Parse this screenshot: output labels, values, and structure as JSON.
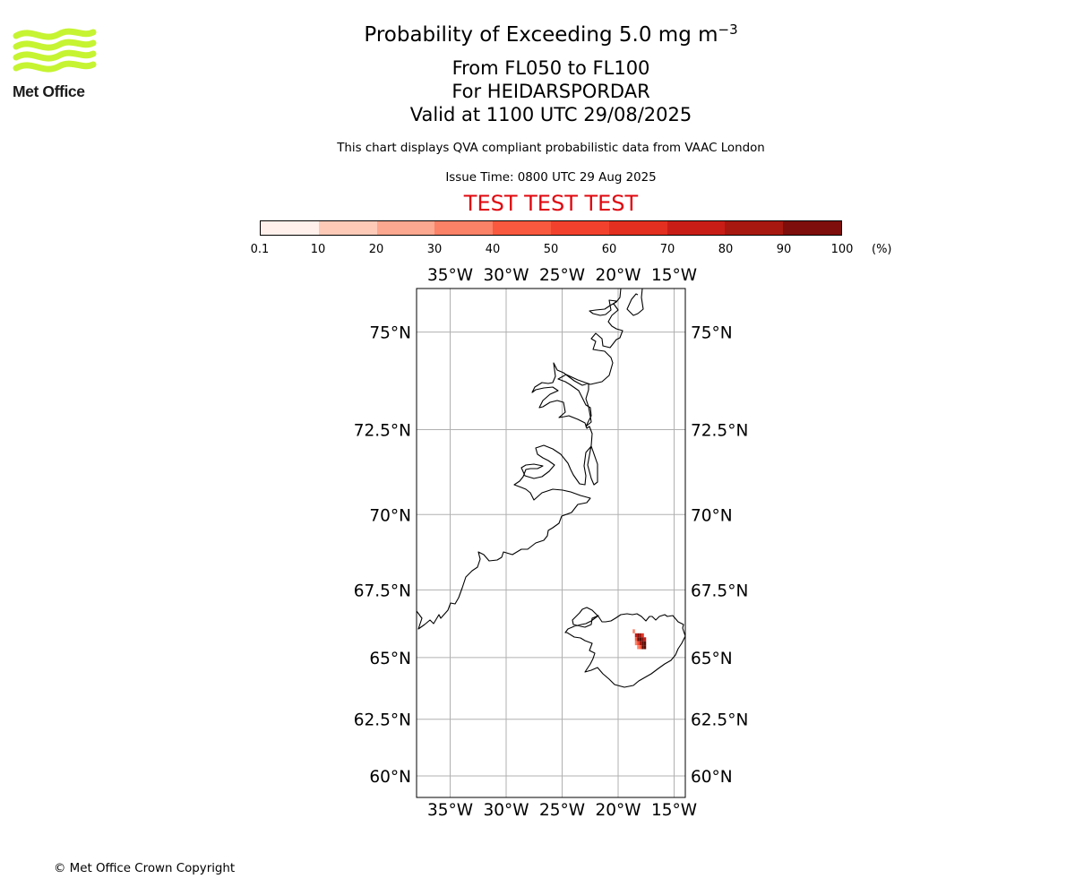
{
  "logo": {
    "text": "Met Office",
    "color": "#c6f432"
  },
  "header": {
    "title_prefix": "Probability of Exceeding 5.0 mg m",
    "title_exponent": "−3",
    "level_range": "From FL050 to FL100",
    "volcano": "For HEIDARSPORDAR",
    "valid_time": "Valid at 1100 UTC 29/08/2025",
    "description": "This chart displays QVA compliant probabilistic data from VAAC London",
    "issue_time": "Issue Time: 0800 UTC 29 Aug 2025",
    "test_banner": "TEST TEST TEST",
    "test_color": "#e0070e"
  },
  "colorbar": {
    "ticks": [
      "0.1",
      "10",
      "20",
      "30",
      "40",
      "50",
      "60",
      "70",
      "80",
      "90",
      "100"
    ],
    "unit": "(%)",
    "colors": [
      "#fff0eb",
      "#fdcab8",
      "#fca78f",
      "#fb8167",
      "#f9593e",
      "#f2422e",
      "#e22f1f",
      "#c81d17",
      "#a71810",
      "#7e0e0b",
      "#5e0c05"
    ]
  },
  "map": {
    "lon_range": [
      -38,
      -14
    ],
    "lat_range": [
      59,
      76
    ],
    "lon_ticks": [
      {
        "v": -35,
        "label": "35°W"
      },
      {
        "v": -30,
        "label": "30°W"
      },
      {
        "v": -25,
        "label": "25°W"
      },
      {
        "v": -20,
        "label": "20°W"
      },
      {
        "v": -15,
        "label": "15°W"
      }
    ],
    "lat_ticks": [
      {
        "v": 60,
        "label": "60°N"
      },
      {
        "v": 62.5,
        "label": "62.5°N"
      },
      {
        "v": 65,
        "label": "65°N"
      },
      {
        "v": 67.5,
        "label": "67.5°N"
      },
      {
        "v": 70,
        "label": "70°N"
      },
      {
        "v": 72.5,
        "label": "72.5°N"
      },
      {
        "v": 75,
        "label": "75°N"
      }
    ],
    "ash_cells": [
      {
        "lon": -18.6,
        "lat": 66.0,
        "p": 20
      },
      {
        "lon": -18.4,
        "lat": 65.85,
        "p": 60
      },
      {
        "lon": -18.2,
        "lat": 65.85,
        "p": 80
      },
      {
        "lon": -18.0,
        "lat": 65.85,
        "p": 70
      },
      {
        "lon": -17.8,
        "lat": 65.85,
        "p": 50
      },
      {
        "lon": -18.4,
        "lat": 65.7,
        "p": 30
      },
      {
        "lon": -18.2,
        "lat": 65.7,
        "p": 90
      },
      {
        "lon": -18.0,
        "lat": 65.7,
        "p": 100
      },
      {
        "lon": -17.8,
        "lat": 65.7,
        "p": 85
      },
      {
        "lon": -17.6,
        "lat": 65.7,
        "p": 60
      },
      {
        "lon": -18.4,
        "lat": 65.55,
        "p": 20
      },
      {
        "lon": -18.2,
        "lat": 65.55,
        "p": 40
      },
      {
        "lon": -18.0,
        "lat": 65.55,
        "p": 75
      },
      {
        "lon": -17.8,
        "lat": 65.55,
        "p": 100
      },
      {
        "lon": -17.6,
        "lat": 65.55,
        "p": 95
      },
      {
        "lon": -18.2,
        "lat": 65.4,
        "p": 20
      },
      {
        "lon": -18.0,
        "lat": 65.4,
        "p": 30
      },
      {
        "lon": -17.8,
        "lat": 65.4,
        "p": 100
      },
      {
        "lon": -17.6,
        "lat": 65.4,
        "p": 100
      }
    ]
  },
  "footer": {
    "copyright": "© Met Office Crown Copyright"
  }
}
